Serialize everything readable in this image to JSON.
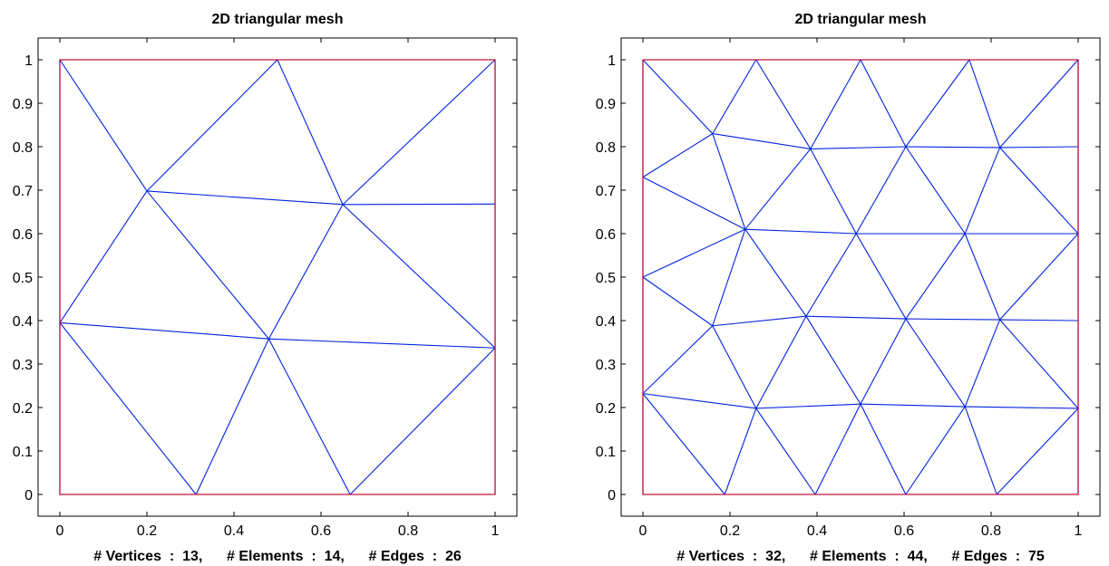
{
  "chart_data": [
    {
      "type": "triangular-mesh",
      "title": "2D triangular mesh",
      "xlabel": "# Vertices  :  13,      # Elements  :  14,      # Edges  :  26",
      "xlim": [
        -0.05,
        1.05
      ],
      "ylim": [
        -0.05,
        1.05
      ],
      "xticks": [
        0,
        0.2,
        0.4,
        0.6,
        0.8,
        1
      ],
      "xtick_labels": [
        "0",
        "0.2",
        "0.4",
        "0.6",
        "0.8",
        "1"
      ],
      "yticks": [
        0,
        0.1,
        0.2,
        0.3,
        0.4,
        0.5,
        0.6,
        0.7,
        0.8,
        0.9,
        1
      ],
      "ytick_labels": [
        "0",
        "0.1",
        "0.2",
        "0.3",
        "0.4",
        "0.5",
        "0.6",
        "0.7",
        "0.8",
        "0.9",
        "1"
      ],
      "boundary_color": "#c0143c",
      "edge_color": "#0022e0",
      "boundary": [
        [
          0,
          0
        ],
        [
          1,
          0
        ],
        [
          1,
          1
        ],
        [
          0,
          1
        ]
      ],
      "vertices": [
        [
          0,
          0
        ],
        [
          0.313,
          0
        ],
        [
          0.667,
          0
        ],
        [
          1,
          0
        ],
        [
          1,
          0.337
        ],
        [
          1,
          0.668
        ],
        [
          1,
          1
        ],
        [
          0.5,
          1
        ],
        [
          0,
          1
        ],
        [
          0,
          0.395
        ],
        [
          0.2,
          0.698
        ],
        [
          0.48,
          0.358
        ],
        [
          0.65,
          0.667
        ]
      ],
      "edges": [
        [
          0,
          1
        ],
        [
          1,
          2
        ],
        [
          2,
          3
        ],
        [
          3,
          4
        ],
        [
          4,
          5
        ],
        [
          5,
          6
        ],
        [
          6,
          7
        ],
        [
          7,
          8
        ],
        [
          8,
          9
        ],
        [
          9,
          0
        ],
        [
          9,
          1
        ],
        [
          1,
          11
        ],
        [
          11,
          2
        ],
        [
          2,
          4
        ],
        [
          4,
          11
        ],
        [
          11,
          9
        ],
        [
          9,
          10
        ],
        [
          10,
          8
        ],
        [
          10,
          7
        ],
        [
          7,
          12
        ],
        [
          12,
          6
        ],
        [
          12,
          5
        ],
        [
          10,
          12
        ],
        [
          10,
          11
        ],
        [
          12,
          11
        ],
        [
          12,
          4
        ]
      ]
    },
    {
      "type": "triangular-mesh",
      "title": "2D triangular mesh",
      "xlabel": "# Vertices  :  32,      # Elements  :  44,      # Edges  :  75",
      "xlim": [
        -0.05,
        1.05
      ],
      "ylim": [
        -0.05,
        1.05
      ],
      "xticks": [
        0,
        0.2,
        0.4,
        0.6,
        0.8,
        1
      ],
      "xtick_labels": [
        "0",
        "0.2",
        "0.4",
        "0.6",
        "0.8",
        "1"
      ],
      "yticks": [
        0,
        0.1,
        0.2,
        0.3,
        0.4,
        0.5,
        0.6,
        0.7,
        0.8,
        0.9,
        1
      ],
      "ytick_labels": [
        "0",
        "0.1",
        "0.2",
        "0.3",
        "0.4",
        "0.5",
        "0.6",
        "0.7",
        "0.8",
        "0.9",
        "1"
      ],
      "boundary_color": "#c0143c",
      "edge_color": "#0022e0",
      "boundary": [
        [
          0,
          0
        ],
        [
          1,
          0
        ],
        [
          1,
          1
        ],
        [
          0,
          1
        ]
      ],
      "vertices": [
        [
          0,
          0
        ],
        [
          0.188,
          0
        ],
        [
          0.396,
          0
        ],
        [
          0.604,
          0
        ],
        [
          0.813,
          0
        ],
        [
          1,
          0
        ],
        [
          1,
          0.198
        ],
        [
          1,
          0.4
        ],
        [
          1,
          0.6
        ],
        [
          1,
          0.8
        ],
        [
          1,
          1
        ],
        [
          0.75,
          1
        ],
        [
          0.5,
          1
        ],
        [
          0.26,
          1
        ],
        [
          0,
          1
        ],
        [
          0,
          0.73
        ],
        [
          0,
          0.5
        ],
        [
          0,
          0.232
        ],
        [
          0.26,
          0.198
        ],
        [
          0.5,
          0.208
        ],
        [
          0.74,
          0.202
        ],
        [
          0.16,
          0.388
        ],
        [
          0.375,
          0.41
        ],
        [
          0.604,
          0.404
        ],
        [
          0.82,
          0.402
        ],
        [
          0.235,
          0.61
        ],
        [
          0.49,
          0.6
        ],
        [
          0.74,
          0.6
        ],
        [
          0.16,
          0.83
        ],
        [
          0.385,
          0.795
        ],
        [
          0.604,
          0.8
        ],
        [
          0.82,
          0.798
        ]
      ],
      "edges": [
        [
          0,
          1
        ],
        [
          1,
          2
        ],
        [
          2,
          3
        ],
        [
          3,
          4
        ],
        [
          4,
          5
        ],
        [
          5,
          6
        ],
        [
          6,
          7
        ],
        [
          7,
          8
        ],
        [
          8,
          9
        ],
        [
          9,
          10
        ],
        [
          10,
          11
        ],
        [
          11,
          12
        ],
        [
          12,
          13
        ],
        [
          13,
          14
        ],
        [
          14,
          15
        ],
        [
          15,
          16
        ],
        [
          16,
          17
        ],
        [
          17,
          0
        ],
        [
          17,
          1
        ],
        [
          17,
          18
        ],
        [
          1,
          18
        ],
        [
          18,
          2
        ],
        [
          2,
          19
        ],
        [
          18,
          19
        ],
        [
          19,
          3
        ],
        [
          3,
          20
        ],
        [
          19,
          20
        ],
        [
          20,
          4
        ],
        [
          4,
          6
        ],
        [
          20,
          6
        ],
        [
          17,
          21
        ],
        [
          16,
          21
        ],
        [
          21,
          18
        ],
        [
          18,
          22
        ],
        [
          21,
          22
        ],
        [
          22,
          19
        ],
        [
          19,
          23
        ],
        [
          22,
          23
        ],
        [
          23,
          20
        ],
        [
          20,
          24
        ],
        [
          23,
          24
        ],
        [
          24,
          6
        ],
        [
          24,
          7
        ],
        [
          16,
          25
        ],
        [
          15,
          25
        ],
        [
          21,
          25
        ],
        [
          25,
          22
        ],
        [
          22,
          26
        ],
        [
          25,
          26
        ],
        [
          26,
          23
        ],
        [
          23,
          27
        ],
        [
          26,
          27
        ],
        [
          27,
          24
        ],
        [
          24,
          8
        ],
        [
          27,
          8
        ],
        [
          15,
          28
        ],
        [
          14,
          28
        ],
        [
          28,
          13
        ],
        [
          28,
          25
        ],
        [
          25,
          29
        ],
        [
          28,
          29
        ],
        [
          29,
          13
        ],
        [
          29,
          12
        ],
        [
          29,
          26
        ],
        [
          26,
          30
        ],
        [
          29,
          30
        ],
        [
          30,
          12
        ],
        [
          30,
          11
        ],
        [
          30,
          27
        ],
        [
          27,
          31
        ],
        [
          30,
          31
        ],
        [
          31,
          11
        ],
        [
          31,
          10
        ],
        [
          31,
          9
        ],
        [
          31,
          8
        ]
      ]
    }
  ]
}
